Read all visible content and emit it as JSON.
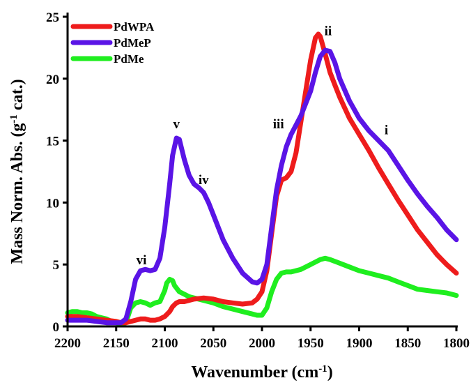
{
  "chart_data": {
    "type": "line",
    "title": "",
    "xlabel": "Wavenumber (cm",
    "xlabel_sup": "-1",
    "xlabel_tail": ")",
    "ylabel": "Mass Norm. Abs. (g",
    "ylabel_sup": "-1",
    "ylabel_tail": " cat.)",
    "xlim": [
      2200,
      1800
    ],
    "ylim": [
      0,
      25
    ],
    "x_reversed": true,
    "grid": false,
    "legend_position": "top-left",
    "xticks": [
      "2200",
      "2150",
      "2100",
      "2050",
      "2000",
      "1950",
      "1900",
      "1850",
      "1800"
    ],
    "yticks": [
      "0",
      "5",
      "10",
      "15",
      "20",
      "25"
    ],
    "annotations": [
      {
        "text": "vi",
        "x": 2124,
        "y": 5.0
      },
      {
        "text": "v",
        "x": 2088,
        "y": 16.0
      },
      {
        "text": "iv",
        "x": 2060,
        "y": 11.5
      },
      {
        "text": "iii",
        "x": 1983,
        "y": 16.0
      },
      {
        "text": "ii",
        "x": 1932,
        "y": 23.5
      },
      {
        "text": "i",
        "x": 1872,
        "y": 15.5
      }
    ],
    "series": [
      {
        "name": "PdWPA",
        "color": "#ee1c1c",
        "x": [
          2200,
          2190,
          2180,
          2170,
          2160,
          2150,
          2145,
          2140,
          2135,
          2130,
          2125,
          2120,
          2115,
          2110,
          2105,
          2100,
          2095,
          2092,
          2088,
          2085,
          2080,
          2070,
          2060,
          2050,
          2040,
          2030,
          2020,
          2010,
          2005,
          2000,
          1995,
          1990,
          1985,
          1980,
          1975,
          1970,
          1965,
          1960,
          1955,
          1950,
          1945,
          1942,
          1940,
          1935,
          1930,
          1925,
          1920,
          1910,
          1900,
          1890,
          1880,
          1870,
          1860,
          1850,
          1840,
          1830,
          1820,
          1810,
          1800
        ],
        "y": [
          0.8,
          0.8,
          0.7,
          0.6,
          0.5,
          0.4,
          0.3,
          0.3,
          0.4,
          0.5,
          0.6,
          0.6,
          0.5,
          0.5,
          0.6,
          0.8,
          1.2,
          1.6,
          1.9,
          2.0,
          2.0,
          2.2,
          2.3,
          2.2,
          2.0,
          1.9,
          1.8,
          1.9,
          2.2,
          2.8,
          4.5,
          7.5,
          10.5,
          11.8,
          12.0,
          12.5,
          14.0,
          16.5,
          19.0,
          21.5,
          23.3,
          23.6,
          23.4,
          22.0,
          20.5,
          19.5,
          18.5,
          16.8,
          15.5,
          14.2,
          12.8,
          11.5,
          10.2,
          9.0,
          7.8,
          6.8,
          5.8,
          5.0,
          4.3
        ]
      },
      {
        "name": "PdMeP",
        "color": "#5a14e6",
        "x": [
          2200,
          2190,
          2180,
          2170,
          2160,
          2150,
          2145,
          2140,
          2135,
          2130,
          2125,
          2120,
          2115,
          2110,
          2105,
          2100,
          2095,
          2092,
          2088,
          2085,
          2080,
          2075,
          2070,
          2065,
          2060,
          2055,
          2050,
          2040,
          2030,
          2020,
          2010,
          2005,
          2000,
          1995,
          1990,
          1985,
          1980,
          1975,
          1970,
          1960,
          1950,
          1945,
          1940,
          1935,
          1930,
          1925,
          1920,
          1910,
          1900,
          1890,
          1880,
          1870,
          1860,
          1850,
          1840,
          1830,
          1820,
          1810,
          1800
        ],
        "y": [
          0.5,
          0.5,
          0.5,
          0.4,
          0.3,
          0.3,
          0.3,
          0.6,
          2.0,
          3.8,
          4.5,
          4.6,
          4.5,
          4.6,
          5.5,
          8.0,
          11.5,
          13.8,
          15.2,
          15.1,
          13.5,
          12.2,
          11.5,
          11.2,
          10.8,
          10.0,
          9.0,
          7.0,
          5.5,
          4.3,
          3.6,
          3.5,
          3.8,
          5.0,
          8.0,
          11.0,
          13.0,
          14.5,
          15.5,
          17.0,
          19.0,
          20.5,
          21.8,
          22.3,
          22.2,
          21.3,
          20.0,
          18.2,
          16.8,
          15.8,
          15.0,
          14.2,
          13.0,
          11.8,
          10.7,
          9.7,
          8.8,
          7.8,
          7.0
        ]
      },
      {
        "name": "PdMe",
        "color": "#1fee1f",
        "x": [
          2200,
          2195,
          2190,
          2185,
          2180,
          2175,
          2170,
          2165,
          2160,
          2155,
          2150,
          2145,
          2140,
          2135,
          2130,
          2125,
          2120,
          2115,
          2110,
          2105,
          2100,
          2098,
          2095,
          2092,
          2090,
          2085,
          2080,
          2075,
          2070,
          2060,
          2050,
          2040,
          2030,
          2020,
          2010,
          2005,
          2000,
          1995,
          1990,
          1985,
          1980,
          1975,
          1970,
          1960,
          1950,
          1940,
          1935,
          1930,
          1920,
          1910,
          1900,
          1890,
          1880,
          1870,
          1860,
          1850,
          1840,
          1830,
          1820,
          1810,
          1800
        ],
        "y": [
          1.1,
          1.2,
          1.2,
          1.1,
          1.1,
          1.0,
          0.8,
          0.7,
          0.6,
          0.4,
          0.3,
          0.2,
          0.3,
          1.5,
          1.9,
          2.0,
          1.9,
          1.7,
          1.9,
          2.0,
          2.9,
          3.5,
          3.8,
          3.7,
          3.3,
          2.8,
          2.6,
          2.4,
          2.3,
          2.1,
          1.9,
          1.6,
          1.4,
          1.2,
          1.0,
          0.9,
          0.9,
          1.5,
          2.8,
          3.8,
          4.3,
          4.4,
          4.4,
          4.6,
          5.0,
          5.4,
          5.5,
          5.4,
          5.1,
          4.8,
          4.5,
          4.3,
          4.1,
          3.9,
          3.6,
          3.3,
          3.0,
          2.9,
          2.8,
          2.7,
          2.5
        ]
      }
    ]
  }
}
